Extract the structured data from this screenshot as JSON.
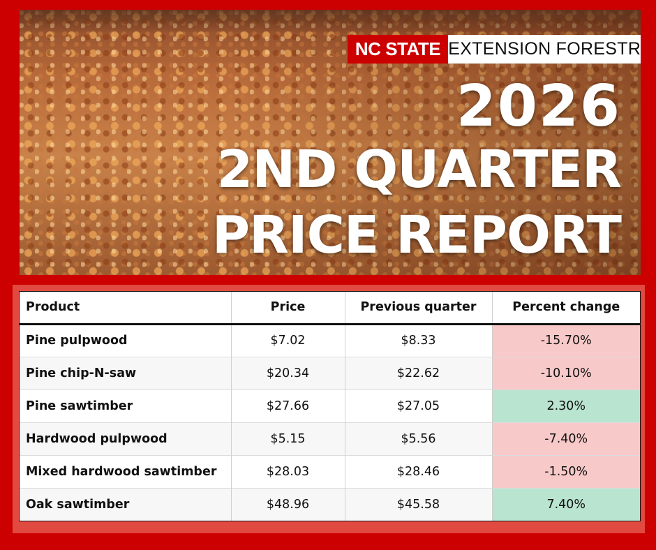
{
  "brand": {
    "left": "NC STATE",
    "right": "EXTENSION FORESTRY"
  },
  "title": {
    "line1": "2026",
    "line2": "2ND QUARTER",
    "line3": "PRICE REPORT"
  },
  "table": {
    "headers": [
      "Product",
      "Price",
      "Previous quarter",
      "Percent change"
    ],
    "rows": [
      {
        "product": "Pine pulpwood",
        "price": "$7.02",
        "previous": "$8.33",
        "change": "-15.70%",
        "trend": "down"
      },
      {
        "product": "Pine chip-N-saw",
        "price": "$20.34",
        "previous": "$22.62",
        "change": "-10.10%",
        "trend": "down"
      },
      {
        "product": "Pine sawtimber",
        "price": "$27.66",
        "previous": "$27.05",
        "change": "2.30%",
        "trend": "up"
      },
      {
        "product": "Hardwood pulpwood",
        "price": "$5.15",
        "previous": "$5.56",
        "change": "-7.40%",
        "trend": "down"
      },
      {
        "product": "Mixed hardwood sawtimber",
        "price": "$28.03",
        "previous": "$28.46",
        "change": "-1.50%",
        "trend": "down"
      },
      {
        "product": "Oak sawtimber",
        "price": "$48.96",
        "previous": "$45.58",
        "change": "7.40%",
        "trend": "up"
      }
    ]
  },
  "colors": {
    "background": "#cc0000",
    "negative": "#f8c9c9",
    "positive": "#b9e4d0"
  }
}
